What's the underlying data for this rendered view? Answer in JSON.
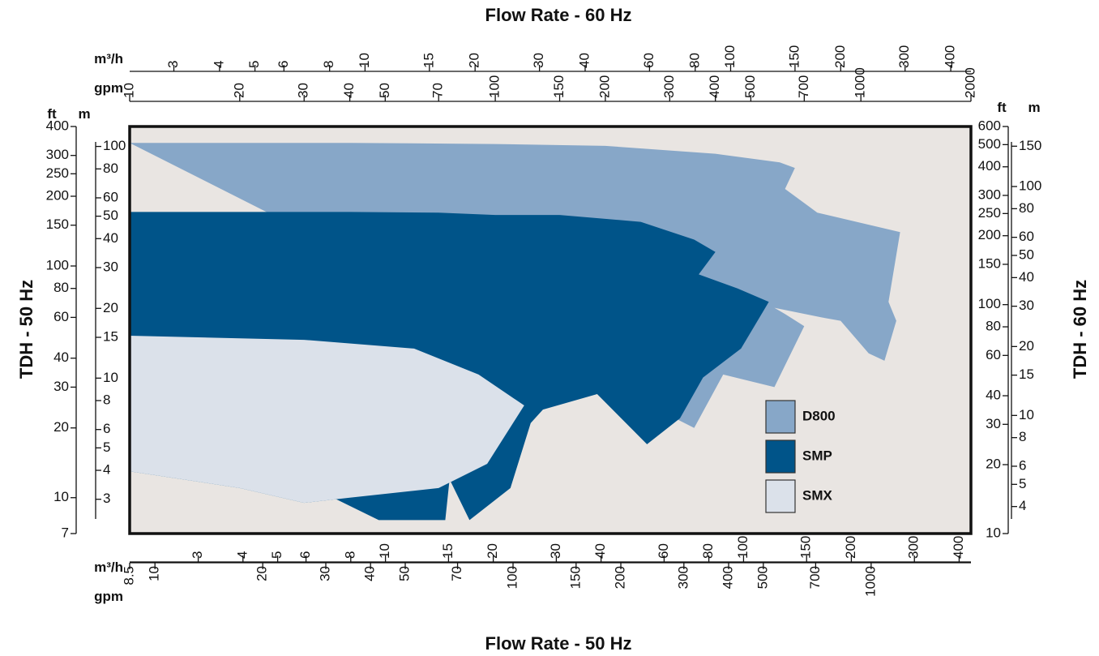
{
  "chart_data": {
    "type": "area",
    "colors": {
      "plot_background": "#e9e5e2",
      "D800": "#87a7c8",
      "SMP": "#005489",
      "SMX": "#dbe1ea"
    },
    "titles": {
      "top": "Flow Rate - 60 Hz",
      "bottom": "Flow Rate - 50 Hz",
      "left": "TDH - 50 Hz",
      "right": "TDH - 60 Hz"
    },
    "axis_units": {
      "top_m3h": "m³/h",
      "top_gpm": "gpm",
      "bottom_m3h": "m³/h",
      "bottom_gpm": "gpm",
      "left_ft": "ft",
      "left_m": "m",
      "right_ft": "ft",
      "right_m": "m"
    },
    "scales": {
      "x": "log",
      "y": "log"
    },
    "xlim": {
      "gpm_60Hz": [
        10,
        2000
      ],
      "gpm_50Hz": [
        8.5,
        1900
      ]
    },
    "ylim": {
      "ft_50Hz": [
        7,
        400
      ],
      "ft_60Hz": [
        10,
        600
      ]
    },
    "top_axis": {
      "m3h_ticks": [
        "3",
        "4",
        "5",
        "6",
        "8",
        "10",
        "15",
        "20",
        "30",
        "40",
        "60",
        "80",
        "100",
        "150",
        "200",
        "300",
        "400"
      ],
      "gpm_ticks": [
        "10",
        "20",
        "30",
        "40",
        "50",
        "70",
        "100",
        "150",
        "200",
        "300",
        "400",
        "500",
        "700",
        "1000",
        "2000"
      ]
    },
    "bottom_axis": {
      "m3h_ticks": [
        "3",
        "4",
        "5",
        "6",
        "8",
        "10",
        "15",
        "20",
        "30",
        "40",
        "60",
        "80",
        "100",
        "150",
        "200",
        "300",
        "400"
      ],
      "gpm_ticks": [
        "8.5",
        "10",
        "20",
        "30",
        "40",
        "50",
        "70",
        "100",
        "150",
        "200",
        "300",
        "400",
        "500",
        "700",
        "1000"
      ]
    },
    "left_axis": {
      "ft_ticks": [
        "400",
        "300",
        "250",
        "200",
        "150",
        "100",
        "80",
        "60",
        "40",
        "30",
        "20",
        "10",
        "7"
      ],
      "m_ticks": [
        "100",
        "80",
        "60",
        "50",
        "40",
        "30",
        "20",
        "15",
        "10",
        "8",
        "6",
        "5",
        "4",
        "3"
      ]
    },
    "right_axis": {
      "ft_ticks": [
        "600",
        "500",
        "400",
        "300",
        "250",
        "200",
        "150",
        "100",
        "80",
        "60",
        "40",
        "30",
        "20",
        "10"
      ],
      "m_ticks": [
        "150",
        "100",
        "80",
        "60",
        "50",
        "40",
        "30",
        "20",
        "15",
        "10",
        "8",
        "6",
        "5",
        "4"
      ]
    },
    "series": [
      {
        "name": "D800",
        "regions": [
          [
            [
              10,
              340
            ],
            [
              40,
              340
            ],
            [
              100,
              336
            ],
            [
              200,
              330
            ],
            [
              400,
              305
            ],
            [
              600,
              280
            ],
            [
              660,
              265
            ],
            [
              620,
              215
            ],
            [
              760,
              170
            ],
            [
              1280,
              140
            ],
            [
              1190,
              70
            ],
            [
              1250,
              58
            ],
            [
              1160,
              39
            ],
            [
              1050,
              42
            ],
            [
              880,
              58
            ],
            [
              780,
              60
            ],
            [
              580,
              66
            ],
            [
              620,
              62
            ],
            [
              700,
              55
            ],
            [
              580,
              30
            ],
            [
              420,
              34
            ],
            [
              350,
              20
            ]
          ]
        ]
      },
      {
        "name": "SMP",
        "regions": [
          [
            [
              10,
              171
            ],
            [
              40,
              171
            ],
            [
              70,
              170
            ],
            [
              100,
              166
            ],
            [
              150,
              166
            ],
            [
              250,
              155
            ],
            [
              350,
              130
            ],
            [
              400,
              115
            ],
            [
              360,
              92
            ],
            [
              460,
              80
            ],
            [
              560,
              70
            ],
            [
              470,
              44
            ],
            [
              370,
              33
            ],
            [
              320,
              22
            ],
            [
              260,
              17
            ],
            [
              190,
              28
            ],
            [
              135,
              24
            ],
            [
              125,
              21
            ],
            [
              110,
              11
            ],
            [
              85,
              8
            ],
            [
              75,
              12
            ],
            [
              73,
              8
            ],
            [
              48,
              8
            ],
            [
              36,
              10
            ],
            [
              24,
              14
            ],
            [
              15,
              16.5
            ],
            [
              10,
              17
            ]
          ],
          [
            [
              10,
              50
            ],
            [
              30,
              48
            ],
            [
              60,
              44
            ],
            [
              90,
              34
            ],
            [
              120,
              25
            ],
            [
              95,
              14
            ],
            [
              70,
              11
            ],
            [
              40,
              10
            ],
            [
              30,
              9.5
            ],
            [
              20,
              11
            ],
            [
              10,
              13
            ]
          ]
        ]
      },
      {
        "name": "SMX",
        "regions": [
          [
            [
              10,
              50
            ],
            [
              30,
              48
            ],
            [
              60,
              44
            ],
            [
              90,
              34
            ],
            [
              120,
              25
            ],
            [
              95,
              14
            ],
            [
              70,
              11
            ],
            [
              40,
              10
            ],
            [
              30,
              9.5
            ],
            [
              20,
              11
            ],
            [
              10,
              13
            ]
          ]
        ]
      }
    ],
    "legend": {
      "placement": "lower-right",
      "entries": [
        {
          "label": "D800",
          "color": "#87a7c8"
        },
        {
          "label": "SMP",
          "color": "#005489"
        },
        {
          "label": "SMX",
          "color": "#dbe1ea"
        }
      ]
    },
    "grid": false
  }
}
